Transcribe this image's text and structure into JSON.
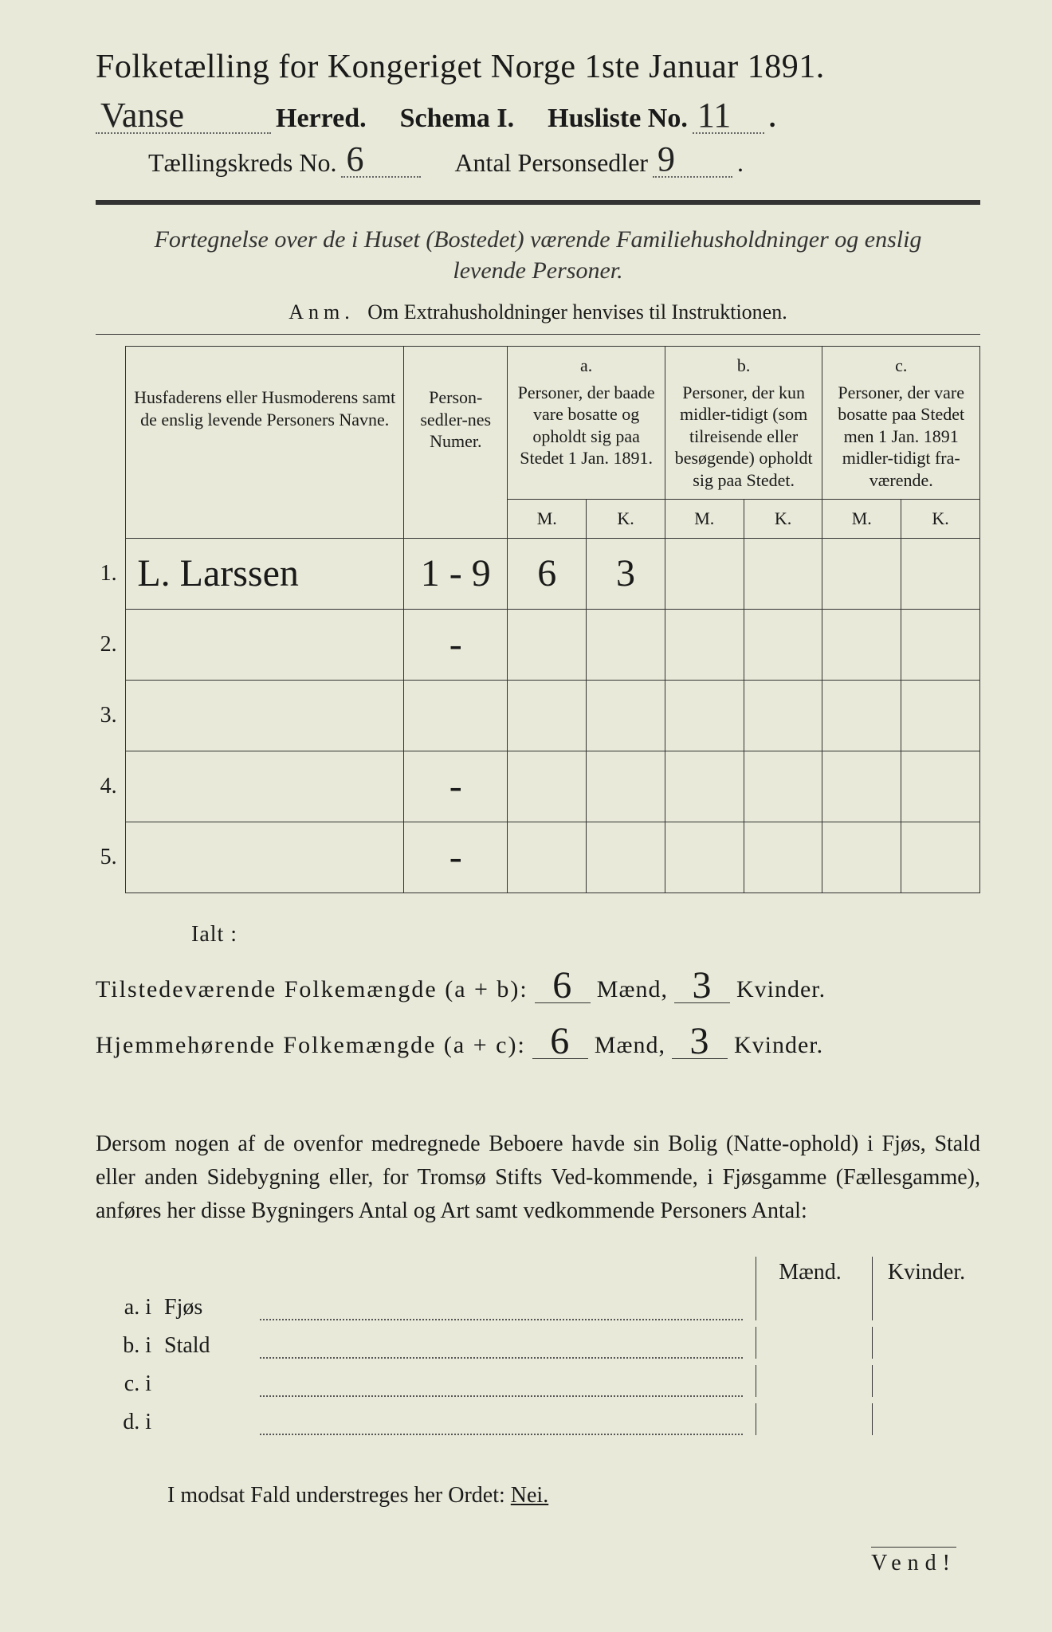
{
  "title": "Folketælling for Kongeriget Norge 1ste Januar 1891.",
  "header": {
    "herred_value": "Vanse",
    "herred_label": "Herred.",
    "schema_label": "Schema I.",
    "husliste_label": "Husliste No.",
    "husliste_value": "11",
    "tkreds_label": "Tællingskreds No.",
    "tkreds_value": "6",
    "antal_label": "Antal Personsedler",
    "antal_value": "9"
  },
  "subdesc": "Fortegnelse over de i Huset (Bostedet) værende Familiehusholdninger og enslig levende Personer.",
  "anm_label": "Anm.",
  "anm_text": "Om Extrahusholdninger henvises til Instruktionen.",
  "table": {
    "col_name": "Husfaderens eller Husmoderens samt de enslig levende Personers Navne.",
    "col_num": "Person-sedler-nes Numer.",
    "col_a_lbl": "a.",
    "col_a": "Personer, der baade vare bosatte og opholdt sig paa Stedet 1 Jan. 1891.",
    "col_b_lbl": "b.",
    "col_b": "Personer, der kun midler-tidigt (som tilreisende eller besøgende) opholdt sig paa Stedet.",
    "col_c_lbl": "c.",
    "col_c": "Personer, der vare bosatte paa Stedet men 1 Jan. 1891 midler-tidigt fra-værende.",
    "m": "M.",
    "k": "K.",
    "rows": [
      {
        "n": "1.",
        "name": "L. Larssen",
        "num": "1 - 9",
        "aM": "6",
        "aK": "3",
        "bM": "",
        "bK": "",
        "cM": "",
        "cK": ""
      },
      {
        "n": "2.",
        "name": "",
        "num": "-",
        "aM": "",
        "aK": "",
        "bM": "",
        "bK": "",
        "cM": "",
        "cK": ""
      },
      {
        "n": "3.",
        "name": "",
        "num": "",
        "aM": "",
        "aK": "",
        "bM": "",
        "bK": "",
        "cM": "",
        "cK": ""
      },
      {
        "n": "4.",
        "name": "",
        "num": "-",
        "aM": "",
        "aK": "",
        "bM": "",
        "bK": "",
        "cM": "",
        "cK": ""
      },
      {
        "n": "5.",
        "name": "",
        "num": "-",
        "aM": "",
        "aK": "",
        "bM": "",
        "bK": "",
        "cM": "",
        "cK": ""
      }
    ]
  },
  "totals": {
    "ialt": "Ialt :",
    "line1_a": "Tilstedeværende Folkemængde (a + b):",
    "line2_a": "Hjemmehørende Folkemængde (a + c):",
    "maend": "Mænd,",
    "kvinder": "Kvinder.",
    "v1m": "6",
    "v1k": "3",
    "v2m": "6",
    "v2k": "3"
  },
  "para": "Dersom nogen af de ovenfor medregnede Beboere havde sin Bolig (Natte-ophold) i Fjøs, Stald eller anden Sidebygning eller, for Tromsø Stifts Ved-kommende, i Fjøsgamme (Fællesgamme), anføres her disse Bygningers Antal og Art samt vedkommende Personers Antal:",
  "buildings": {
    "head_m": "Mænd.",
    "head_k": "Kvinder.",
    "rows": [
      {
        "lbl": "a.  i",
        "name": "Fjøs"
      },
      {
        "lbl": "b.  i",
        "name": "Stald"
      },
      {
        "lbl": "c.  i",
        "name": ""
      },
      {
        "lbl": "d.  i",
        "name": ""
      }
    ]
  },
  "modsat_pre": "I modsat Fald understreges her Ordet: ",
  "modsat_nei": "Nei.",
  "vend": "Vend!"
}
